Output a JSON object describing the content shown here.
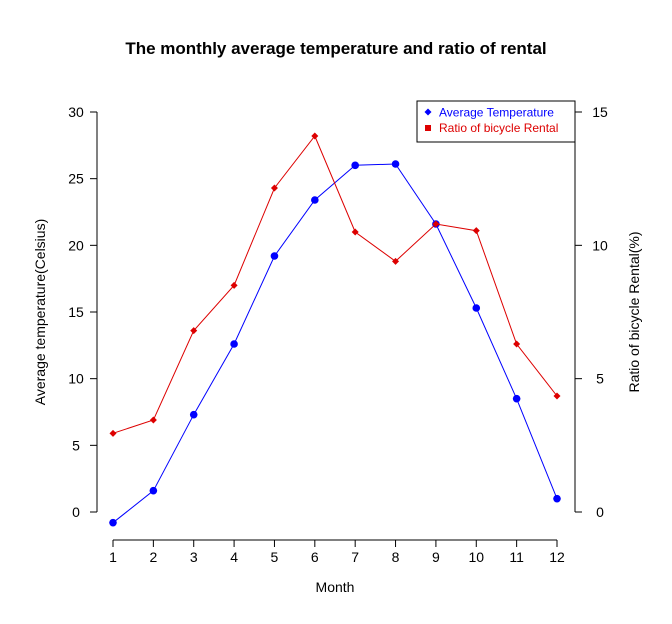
{
  "chart_data": {
    "type": "line",
    "title": "The monthly average temperature and ratio of rental",
    "xlabel": "Month",
    "ylabel_left": "Average temperature(Celsius)",
    "ylabel_right": "Ratio of bicycle Rental(%)",
    "x": [
      1,
      2,
      3,
      4,
      5,
      6,
      7,
      8,
      9,
      10,
      11,
      12
    ],
    "x_ticks": [
      "1",
      "2",
      "3",
      "4",
      "5",
      "6",
      "7",
      "8",
      "9",
      "10",
      "11",
      "12"
    ],
    "ylim_left": [
      -0.8,
      30
    ],
    "yticks_left": [
      "0",
      "5",
      "10",
      "15",
      "20",
      "25",
      "30"
    ],
    "ylim_right": [
      -0.4,
      15
    ],
    "yticks_right": [
      "0",
      "5",
      "10",
      "15"
    ],
    "legend_position": "top-right",
    "grid": false,
    "series": [
      {
        "name": "Average Temperature",
        "axis": "left",
        "color": "#0000ff",
        "marker": "circle",
        "values": [
          -0.8,
          1.6,
          7.3,
          12.6,
          19.2,
          23.4,
          26.0,
          26.1,
          21.6,
          15.3,
          8.5,
          1.0
        ]
      },
      {
        "name": "Ratio of bicycle Rental",
        "axis": "right",
        "color": "#dd0000",
        "marker": "diamond",
        "values": [
          2.95,
          3.45,
          6.8,
          8.5,
          12.15,
          14.1,
          10.5,
          9.4,
          10.8,
          10.55,
          6.3,
          4.35
        ]
      }
    ]
  }
}
